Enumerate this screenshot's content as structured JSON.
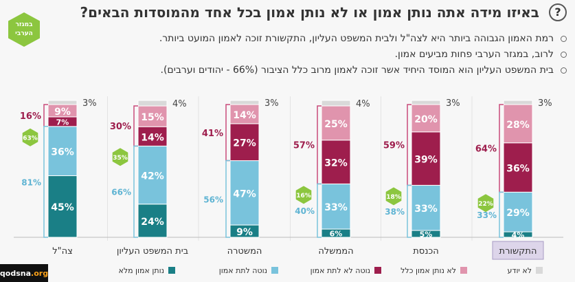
{
  "header": {
    "help_icon": "question-mark-icon",
    "title": "באיזו מידה אתה נותן אמון או לא נותן אמון בכל אחד מהמוסדות הבאים?",
    "arab_badge": "במגזר הערבי",
    "bullets": [
      "רמת האמון הגבוהה ביותר היא לצה\"ל ולבית המשפט העליון, התקשורת זוכה לאמון המועט ביותר.",
      "לרוב, במגזר הערבי פחות מביעים אמון.",
      "בית המשפט העליון הוא המוסד היחיד אשר זוכה לאמון מרוב כלל הציבור (66% - יהודים וערבים)."
    ]
  },
  "credit": {
    "site": "qodsna",
    "tld": ".org"
  },
  "colors": {
    "full_trust": "#1a7f86",
    "tend_trust": "#79c3dc",
    "tend_distrust": "#9e1e4d",
    "no_trust": "#e094ad",
    "dont_know": "#d9d9d9",
    "trust_bracket": "#79c3dc",
    "distrust_bracket": "#c94a7a",
    "arab_badge": "#8cc63f",
    "highlight_cat_bg": "#ddd5ea"
  },
  "chart_data": {
    "type": "bar",
    "stacked": true,
    "categories": [
      "צה\"ל",
      "בית המשפט העליון",
      "המשטרה",
      "הממשלה",
      "הכנסת",
      "התקשורת"
    ],
    "highlighted_category": "התקשורת",
    "series": [
      {
        "name": "נותן אמון מלא",
        "color": "#1a7f86",
        "values": [
          45,
          24,
          9,
          6,
          5,
          4
        ]
      },
      {
        "name": "נוטה לתת אמון",
        "color": "#79c3dc",
        "values": [
          36,
          42,
          47,
          33,
          33,
          29
        ]
      },
      {
        "name": "נוטה לא לתת אמון",
        "color": "#9e1e4d",
        "values": [
          7,
          14,
          27,
          32,
          39,
          36
        ]
      },
      {
        "name": "לא נותן אמון כלל",
        "color": "#e094ad",
        "values": [
          9,
          15,
          14,
          25,
          20,
          28
        ]
      },
      {
        "name": "לא יודע",
        "color": "#d9d9d9",
        "values": [
          3,
          4,
          3,
          4,
          3,
          3
        ]
      }
    ],
    "total_trust": [
      "81%",
      "66%",
      "56%",
      "40%",
      "38%",
      "33%"
    ],
    "total_distrust": [
      "16%",
      "30%",
      "41%",
      "57%",
      "59%",
      "64%"
    ],
    "arab_sector_trust": [
      "63%",
      "35%",
      null,
      "16%",
      "18%",
      "22%"
    ],
    "ylim": [
      0,
      100
    ],
    "legend": {
      "position": "bottom"
    }
  }
}
